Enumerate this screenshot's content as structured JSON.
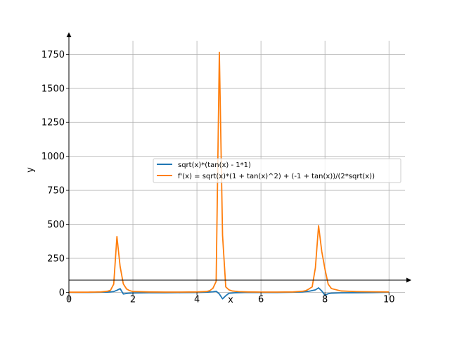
{
  "chart_data": {
    "type": "line",
    "xlabel": "x",
    "ylabel": "y",
    "xlim": [
      0,
      10.5
    ],
    "ylim": [
      -60,
      1850
    ],
    "x_ticks": [
      0,
      2,
      4,
      6,
      8,
      10
    ],
    "x_tick_labels": [
      "0",
      "2",
      "4",
      "6",
      "8",
      "10"
    ],
    "y_ticks": [
      0,
      250,
      500,
      750,
      1000,
      1250,
      1500,
      1750
    ],
    "y_tick_labels": [
      "0",
      "250",
      "500",
      "750",
      "1000",
      "1250",
      "1500",
      "1750"
    ],
    "grid": true,
    "legend_position": "center-right",
    "series": [
      {
        "name": "sqrt(x)*(tan(x) - 1*1)",
        "color": "#1f77b4",
        "x": [
          0,
          0.2,
          0.4,
          0.6,
          0.8,
          1.0,
          1.2,
          1.3,
          1.4,
          1.5,
          1.6,
          1.7,
          1.8,
          1.9,
          2.0,
          2.5,
          3.0,
          3.5,
          4.0,
          4.3,
          4.5,
          4.6,
          4.7,
          4.8,
          4.9,
          5.0,
          5.2,
          5.5,
          6.0,
          6.5,
          7.0,
          7.3,
          7.5,
          7.7,
          7.8,
          7.9,
          8.0,
          8.1,
          8.2,
          8.5,
          9.0,
          9.5,
          10.0
        ],
        "y": [
          0,
          -0.3,
          -0.4,
          -0.3,
          0.1,
          0.6,
          1.7,
          2.9,
          5.5,
          15,
          27,
          -12,
          -8,
          -6,
          -5,
          -3,
          -3,
          -2,
          -1,
          1,
          4,
          8,
          -12,
          -48,
          -25,
          -7,
          -3,
          -1,
          -1,
          -1,
          1,
          3,
          8,
          18,
          33,
          10,
          -21,
          -10,
          -6,
          -4,
          -3,
          -2,
          1
        ]
      },
      {
        "name": "f'(x) = sqrt(x)*(1 + tan(x)^2) + (-1 + tan(x))/(2*sqrt(x))",
        "color": "#ff7f0e",
        "x": [
          0,
          0.2,
          0.4,
          0.6,
          0.8,
          1.0,
          1.2,
          1.3,
          1.4,
          1.5,
          1.6,
          1.7,
          1.8,
          1.9,
          2.0,
          2.5,
          3.0,
          3.5,
          4.0,
          4.3,
          4.4,
          4.5,
          4.6,
          4.7,
          4.8,
          4.9,
          5.0,
          5.1,
          5.3,
          5.6,
          6.0,
          6.5,
          7.0,
          7.3,
          7.4,
          7.5,
          7.6,
          7.7,
          7.8,
          7.9,
          8.0,
          8.1,
          8.2,
          8.5,
          9.0,
          9.5,
          10.0
        ],
        "y": [
          1,
          1,
          1,
          1.5,
          2,
          3,
          8,
          15,
          60,
          410,
          190,
          62,
          25,
          12,
          6,
          3,
          2,
          2,
          3,
          6,
          12,
          30,
          80,
          1765,
          420,
          40,
          18,
          10,
          5,
          3,
          2,
          2,
          3,
          8,
          12,
          25,
          40,
          180,
          490,
          300,
          170,
          60,
          28,
          10,
          5,
          4,
          3
        ]
      }
    ]
  }
}
